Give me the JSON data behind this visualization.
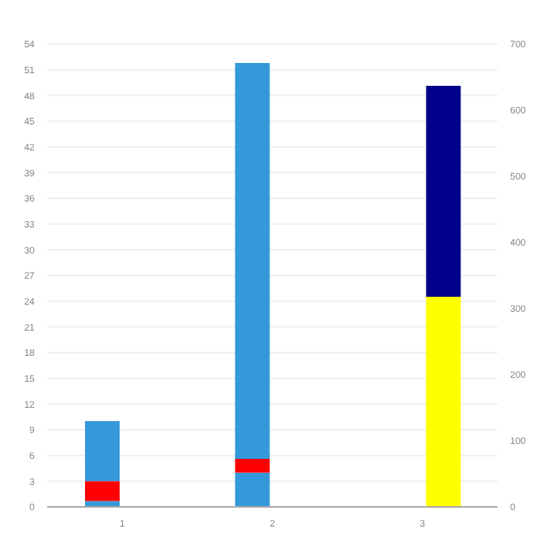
{
  "chart_data": {
    "type": "bar",
    "stacked": true,
    "categories": [
      "1",
      "2",
      "3"
    ],
    "series": [
      {
        "color": "#3498db",
        "values": [
          0.7,
          4,
          null
        ]
      },
      {
        "color": "#ff0000",
        "values": [
          2.3,
          1.6,
          null
        ]
      },
      {
        "color": "#3498db",
        "values": [
          7,
          46.2,
          null
        ]
      },
      {
        "color": "#ffff00",
        "values": [
          null,
          null,
          318
        ],
        "axis": "y2"
      },
      {
        "color": "#00008b",
        "values": [
          null,
          null,
          319
        ],
        "axis": "y2"
      }
    ],
    "ylim": [
      0,
      54
    ],
    "yticks": [
      0,
      3,
      6,
      9,
      12,
      15,
      18,
      21,
      24,
      27,
      30,
      33,
      36,
      39,
      42,
      45,
      48,
      51,
      54
    ],
    "y2lim": [
      0,
      700
    ],
    "y2ticks": [
      0,
      100,
      200,
      300,
      400,
      500,
      600,
      700
    ],
    "grid": "y",
    "legend": false
  }
}
